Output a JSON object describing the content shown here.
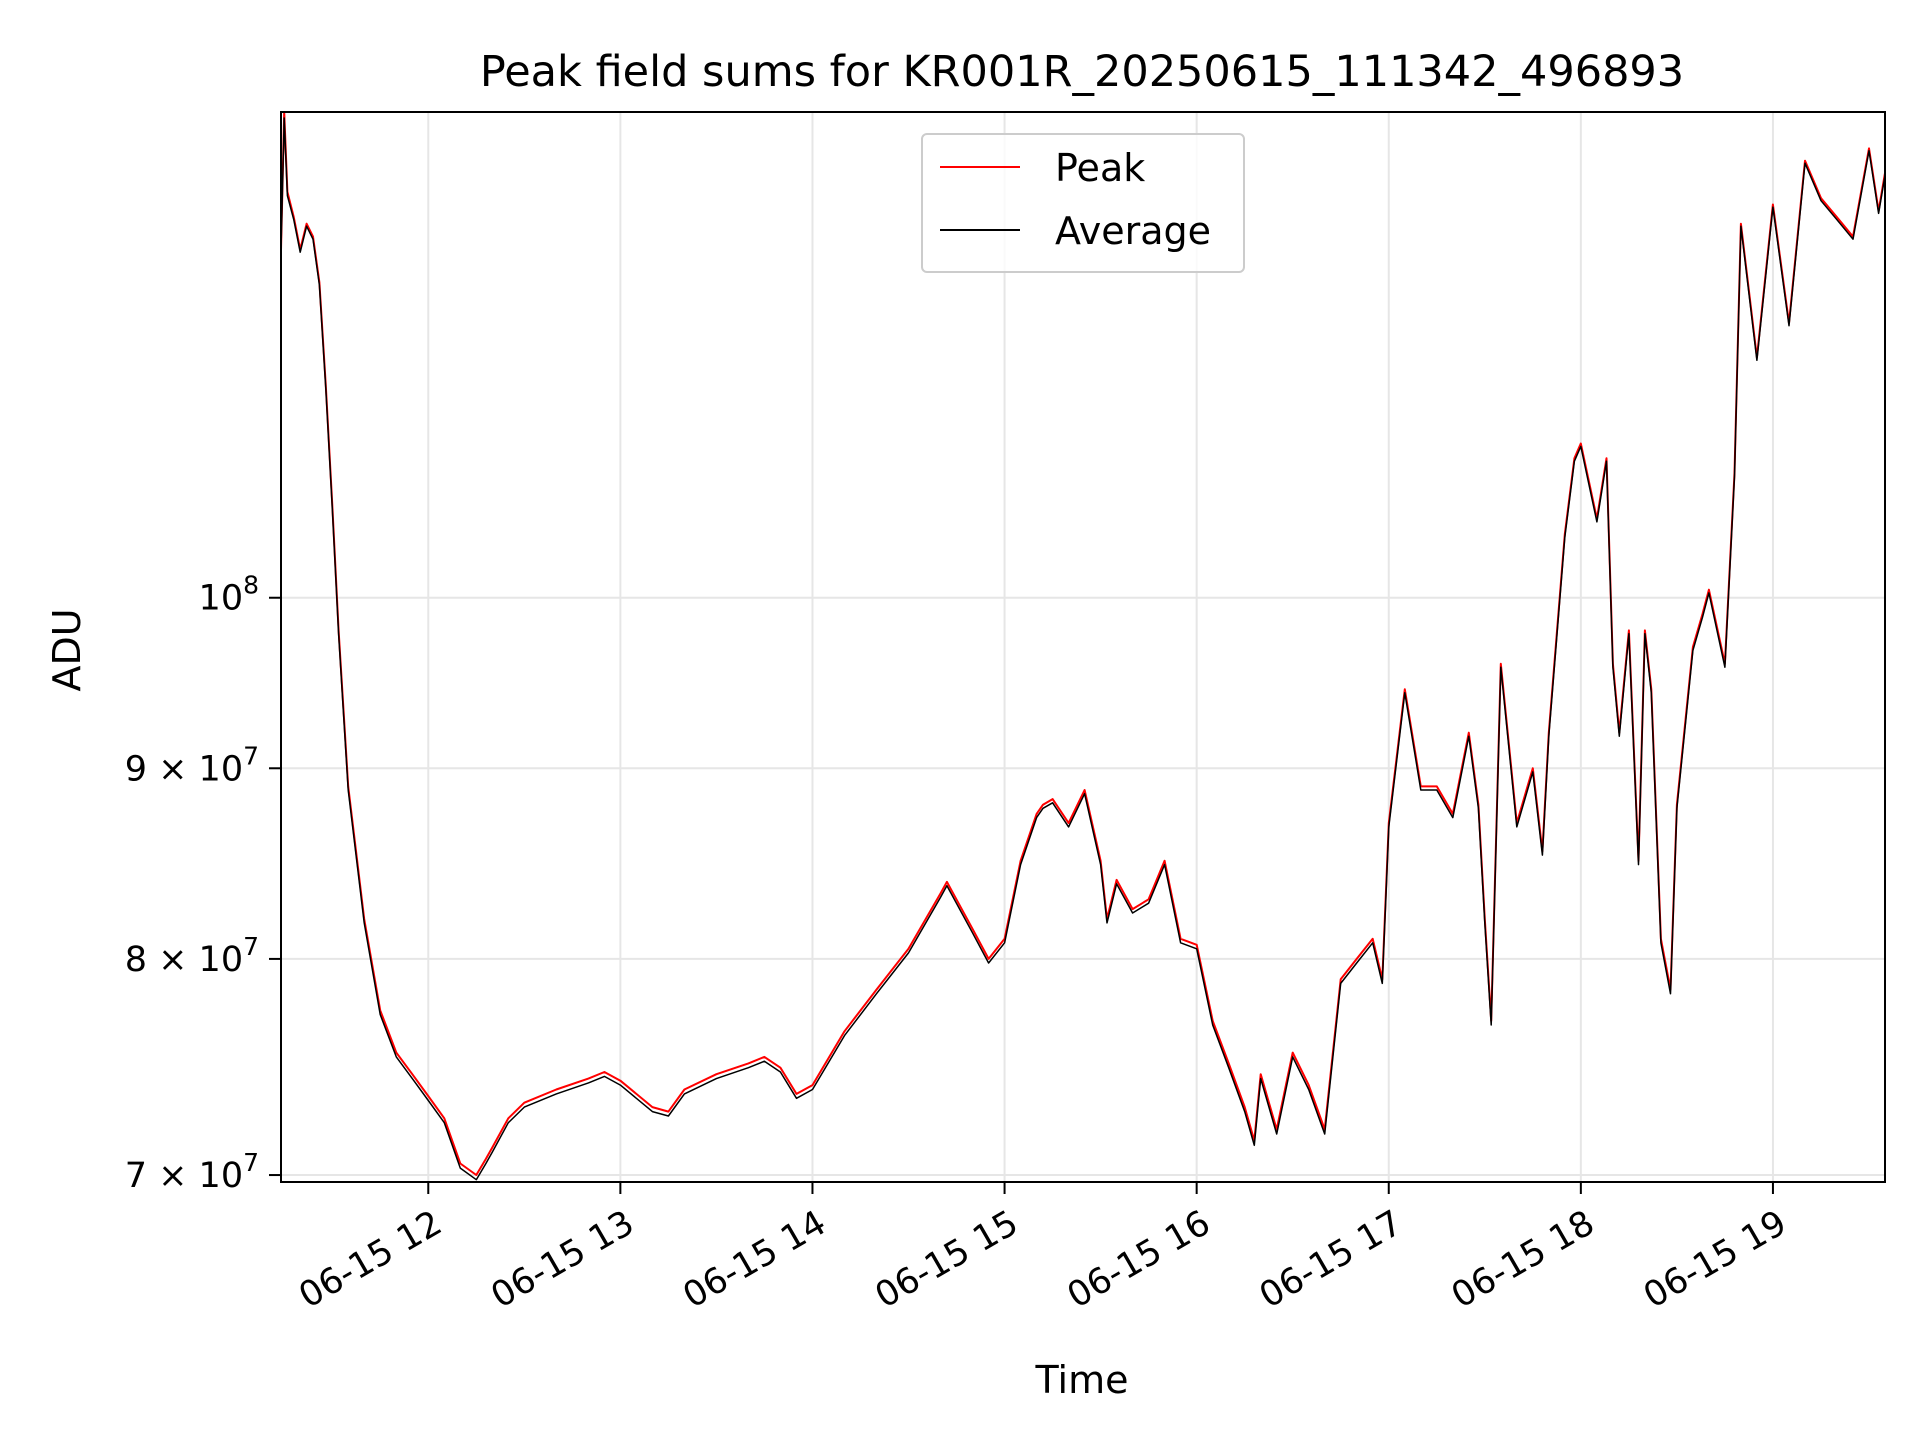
{
  "chart_data": {
    "type": "line",
    "title": "Peak field sums for KR001R_20250615_111342_496893",
    "xlabel": "Time",
    "ylabel": "ADU",
    "y_scale": "log",
    "ylim": [
      69700000,
      135000000
    ],
    "xlim": [
      "06-15 11:14",
      "06-15 19:35"
    ],
    "grid": true,
    "legend_position": "top-center",
    "x_ticks": [
      {
        "value": "06-15 12:00",
        "label": "06-15 12"
      },
      {
        "value": "06-15 13:00",
        "label": "06-15 13"
      },
      {
        "value": "06-15 14:00",
        "label": "06-15 14"
      },
      {
        "value": "06-15 15:00",
        "label": "06-15 15"
      },
      {
        "value": "06-15 16:00",
        "label": "06-15 16"
      },
      {
        "value": "06-15 17:00",
        "label": "06-15 17"
      },
      {
        "value": "06-15 18:00",
        "label": "06-15 18"
      },
      {
        "value": "06-15 19:00",
        "label": "06-15 19"
      }
    ],
    "y_ticks": [
      {
        "value": 70000000,
        "mant": "7",
        "exp": "7"
      },
      {
        "value": 80000000,
        "mant": "8",
        "exp": "7"
      },
      {
        "value": 90000000,
        "mant": "9",
        "exp": "7"
      },
      {
        "value": 100000000,
        "mant": "",
        "exp": "8"
      }
    ],
    "x": [
      "06-15 11:14",
      "06-15 11:15",
      "06-15 11:16",
      "06-15 11:18",
      "06-15 11:20",
      "06-15 11:22",
      "06-15 11:24",
      "06-15 11:26",
      "06-15 11:28",
      "06-15 11:30",
      "06-15 11:32",
      "06-15 11:35",
      "06-15 11:40",
      "06-15 11:45",
      "06-15 11:50",
      "06-15 11:55",
      "06-15 12:00",
      "06-15 12:05",
      "06-15 12:10",
      "06-15 12:15",
      "06-15 12:18",
      "06-15 12:20",
      "06-15 12:25",
      "06-15 12:30",
      "06-15 12:40",
      "06-15 12:50",
      "06-15 12:55",
      "06-15 13:00",
      "06-15 13:10",
      "06-15 13:15",
      "06-15 13:20",
      "06-15 13:30",
      "06-15 13:40",
      "06-15 13:45",
      "06-15 13:50",
      "06-15 13:55",
      "06-15 14:00",
      "06-15 14:10",
      "06-15 14:20",
      "06-15 14:30",
      "06-15 14:40",
      "06-15 14:42",
      "06-15 14:50",
      "06-15 14:55",
      "06-15 15:00",
      "06-15 15:05",
      "06-15 15:10",
      "06-15 15:12",
      "06-15 15:15",
      "06-15 15:20",
      "06-15 15:25",
      "06-15 15:30",
      "06-15 15:32",
      "06-15 15:35",
      "06-15 15:40",
      "06-15 15:45",
      "06-15 15:50",
      "06-15 15:55",
      "06-15 16:00",
      "06-15 16:05",
      "06-15 16:10",
      "06-15 16:15",
      "06-15 16:18",
      "06-15 16:20",
      "06-15 16:25",
      "06-15 16:30",
      "06-15 16:35",
      "06-15 16:40",
      "06-15 16:45",
      "06-15 16:50",
      "06-15 16:55",
      "06-15 16:58",
      "06-15 17:00",
      "06-15 17:05",
      "06-15 17:10",
      "06-15 17:15",
      "06-15 17:20",
      "06-15 17:25",
      "06-15 17:28",
      "06-15 17:30",
      "06-15 17:32",
      "06-15 17:35",
      "06-15 17:40",
      "06-15 17:45",
      "06-15 17:48",
      "06-15 17:50",
      "06-15 17:55",
      "06-15 17:58",
      "06-15 18:00",
      "06-15 18:05",
      "06-15 18:08",
      "06-15 18:10",
      "06-15 18:12",
      "06-15 18:15",
      "06-15 18:18",
      "06-15 18:20",
      "06-15 18:22",
      "06-15 18:25",
      "06-15 18:28",
      "06-15 18:30",
      "06-15 18:35",
      "06-15 18:38",
      "06-15 18:40",
      "06-15 18:45",
      "06-15 18:48",
      "06-15 18:50",
      "06-15 18:55",
      "06-15 19:00",
      "06-15 19:05",
      "06-15 19:10",
      "06-15 19:15",
      "06-15 19:20",
      "06-15 19:25",
      "06-15 19:30",
      "06-15 19:33",
      "06-15 19:35"
    ],
    "series": [
      {
        "name": "Peak",
        "color": "#ff0000",
        "values": [
          124000000,
          135000000,
          128500000,
          126500000,
          124000000,
          126000000,
          125000000,
          121500000,
          114000000,
          106000000,
          98000000,
          89000000,
          82000000,
          77500000,
          75500000,
          74500000,
          73500000,
          72500000,
          70500000,
          70000000,
          70700000,
          71200000,
          72500000,
          73200000,
          73800000,
          74300000,
          74600000,
          74200000,
          73000000,
          72800000,
          73800000,
          74500000,
          75000000,
          75300000,
          74800000,
          73600000,
          74000000,
          76500000,
          78500000,
          80500000,
          83300000,
          83900000,
          81500000,
          80000000,
          81000000,
          85000000,
          87500000,
          88000000,
          88300000,
          87000000,
          88800000,
          85000000,
          82000000,
          84000000,
          82500000,
          83000000,
          85000000,
          81000000,
          80700000,
          77000000,
          75000000,
          73000000,
          71500000,
          74500000,
          72000000,
          75500000,
          74000000,
          72000000,
          79000000,
          80000000,
          81000000,
          79000000,
          87000000,
          94500000,
          89000000,
          89000000,
          87500000,
          92000000,
          88000000,
          82000000,
          77000000,
          96000000,
          87000000,
          90000000,
          85500000,
          92000000,
          104000000,
          109000000,
          110000000,
          105000000,
          109000000,
          96000000,
          92000000,
          98000000,
          85000000,
          98000000,
          94500000,
          81000000,
          78500000,
          88000000,
          97000000,
          99000000,
          100500000,
          96000000,
          108000000,
          126000000,
          116000000,
          127500000,
          118500000,
          131000000,
          128000000,
          126500000,
          125000000,
          132000000,
          127000000,
          130000000
        ]
      },
      {
        "name": "Average",
        "color": "#000000",
        "values": [
          124000000,
          134500000,
          128200000,
          126300000,
          123800000,
          125800000,
          124800000,
          121300000,
          113800000,
          105800000,
          97800000,
          88800000,
          81800000,
          77300000,
          75300000,
          74300000,
          73300000,
          72300000,
          70300000,
          69800000,
          70500000,
          71000000,
          72300000,
          73000000,
          73600000,
          74100000,
          74400000,
          74000000,
          72800000,
          72600000,
          73600000,
          74300000,
          74800000,
          75100000,
          74600000,
          73400000,
          73800000,
          76300000,
          78300000,
          80300000,
          83100000,
          83700000,
          81300000,
          79800000,
          80800000,
          84800000,
          87300000,
          87800000,
          88100000,
          86800000,
          88600000,
          84800000,
          81800000,
          83800000,
          82300000,
          82800000,
          84800000,
          80800000,
          80500000,
          76800000,
          74800000,
          72800000,
          71300000,
          74300000,
          71800000,
          75300000,
          73800000,
          71800000,
          78800000,
          79800000,
          80800000,
          78800000,
          86800000,
          94300000,
          88800000,
          88800000,
          87300000,
          91800000,
          87800000,
          81800000,
          76800000,
          95800000,
          86800000,
          89800000,
          85300000,
          91800000,
          103800000,
          108800000,
          109800000,
          104800000,
          108800000,
          95800000,
          91800000,
          97800000,
          84800000,
          97800000,
          94300000,
          80800000,
          78300000,
          87800000,
          96800000,
          98800000,
          100300000,
          95800000,
          107800000,
          125800000,
          115800000,
          127300000,
          118300000,
          130800000,
          127800000,
          126300000,
          124800000,
          131800000,
          126800000,
          129800000
        ]
      }
    ]
  }
}
